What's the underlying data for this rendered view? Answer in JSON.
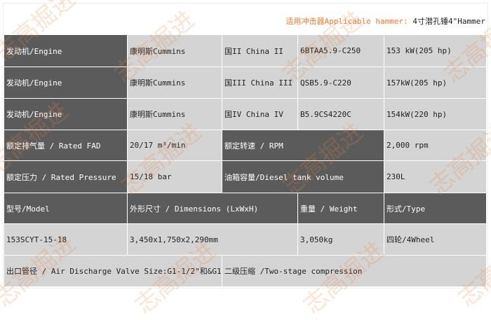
{
  "header": {
    "hammer_label": "适用冲击器Applicable hammer:",
    "hammer_value": " 4寸潜孔锤4\"Hammer"
  },
  "watermark": "志高掘进",
  "colors": {
    "dark_cell": "#5b5b5b",
    "light_cell": "#d4d4d4",
    "accent": "#f07a2a"
  },
  "rows": {
    "engine1": [
      "发动机/Engine",
      "康明斯Cummins",
      "国II China II",
      "6BTAA5.9-C250",
      "153 kW(205 hp)"
    ],
    "engine2": [
      "发动机/Engine",
      "康明斯Cummins",
      "国III China III",
      "QSB5.9-C220",
      "157kW(205 hp)"
    ],
    "engine3": [
      "发动机/Engine",
      "康明斯Cummins",
      "国IV China IV",
      "B5.9CS4220C",
      "154kW(220 hp)"
    ],
    "fad": [
      "额定排气量 / Rated FAD",
      "20/17 m³/min",
      "额定转速 / RPM",
      "2,000 rpm"
    ],
    "pressure": [
      "额定压力 / Rated Pressure",
      "15/18 bar",
      "油箱容量/Diesel tank volume",
      "230L"
    ],
    "model_header": [
      "型号/Model",
      "外形尺寸 / Dimensions (LxWxH)",
      "重量 / Weight",
      "形式/Type"
    ],
    "model_values": [
      "153SCYT-15-18",
      "3,450x1,750x2,290mm",
      "3,050kg",
      "四轮/4Wheel"
    ],
    "discharge": [
      "出口管径 / Air Discharge Valve Size:G1-1/2\"和&G1\"",
      "二级压缩 /Two-stage compression"
    ]
  }
}
